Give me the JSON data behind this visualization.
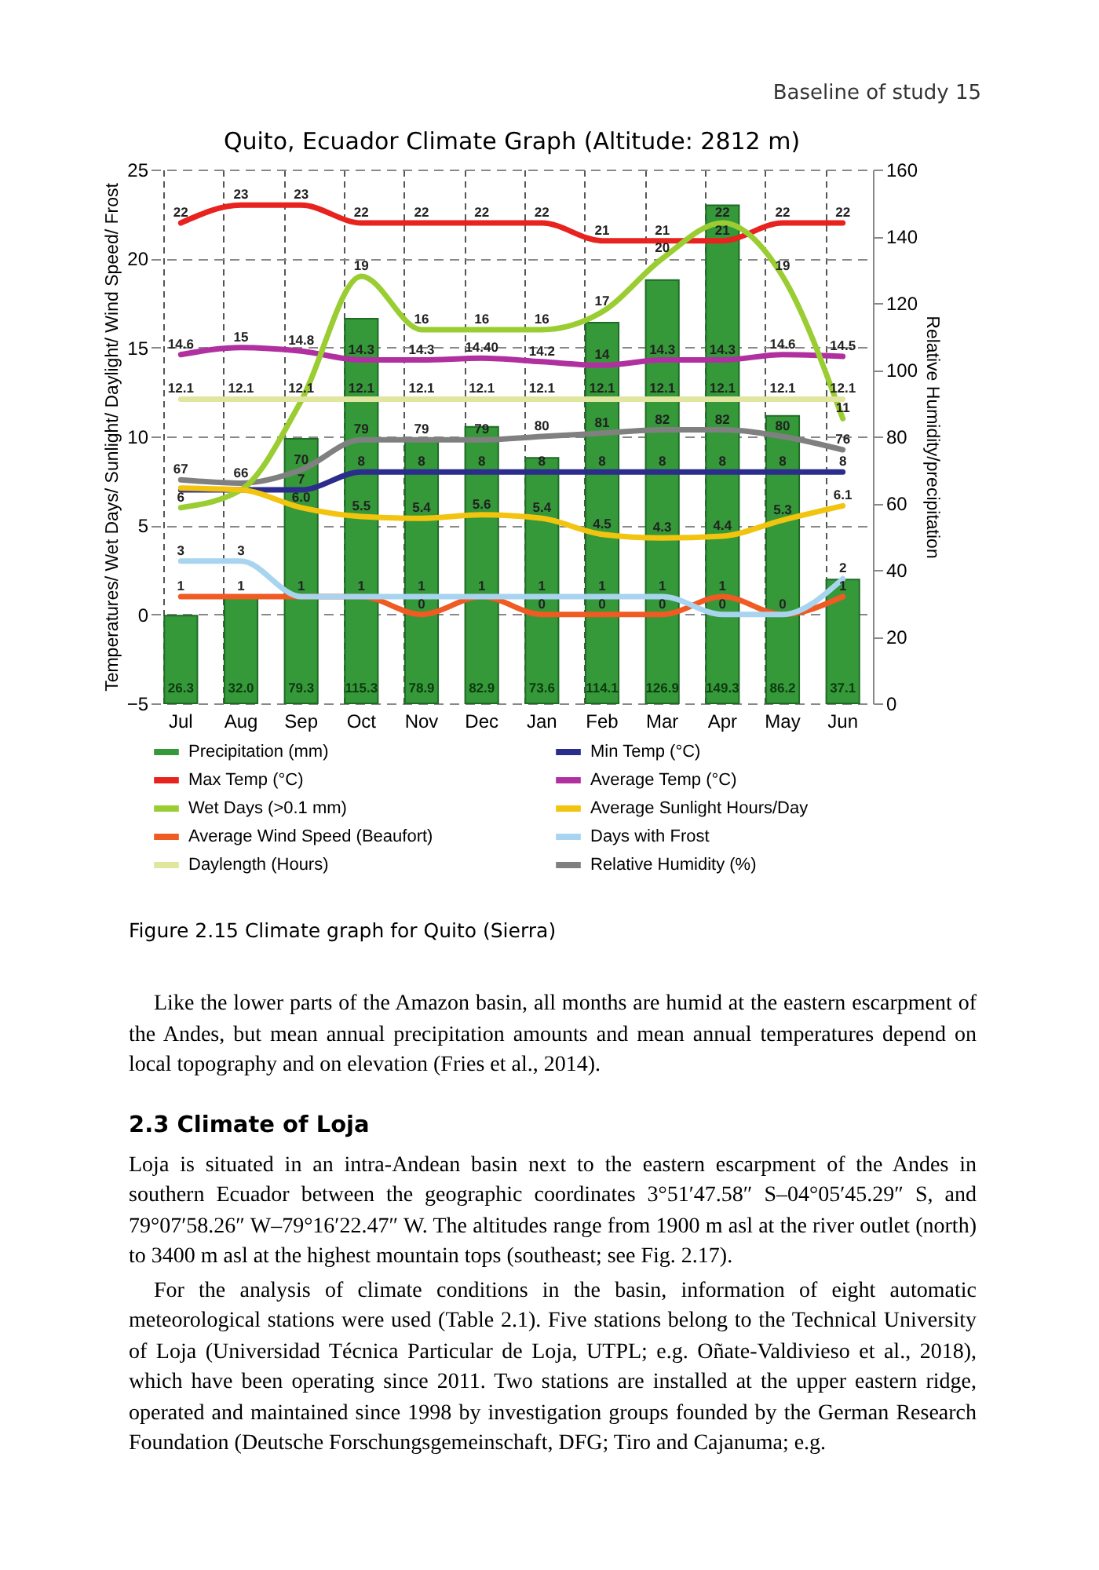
{
  "chart_data": {
    "type": "line",
    "title": "Quito, Ecuador Climate Graph (Altitude: 2812 m)",
    "ylabel": "Temperatures/ Wet Days/ Sunlight/ Daylight/ Wind Speed/ Frost",
    "y2label": "Relative Humidity/precipitation",
    "categories": [
      "Jul",
      "Aug",
      "Sep",
      "Oct",
      "Nov",
      "Dec",
      "Jan",
      "Feb",
      "Mar",
      "Apr",
      "May",
      "Jun"
    ],
    "series": [
      {
        "name": "Precipitation (mm)",
        "type": "bar",
        "axis": "y2",
        "color": "#35993a",
        "values": [
          26.3,
          32.0,
          79.3,
          115.3,
          78.9,
          82.9,
          73.6,
          114.1,
          126.9,
          149.3,
          86.2,
          37.1
        ],
        "value_labels": [
          "26.3",
          "32.0",
          "79.3",
          "115.3",
          "78.9",
          "82.9",
          "73.6",
          "114.1",
          "126.9",
          "149.3",
          "86.2",
          "37.1"
        ]
      },
      {
        "name": "Min Temp (°C)",
        "color": "#2b2c8c",
        "values": [
          7,
          7,
          7,
          8,
          8,
          8,
          8,
          8,
          8,
          8,
          8,
          8
        ],
        "value_labels": [
          null,
          null,
          "7",
          "8",
          "8",
          "8",
          "8",
          "8",
          "8",
          "8",
          "8",
          "8"
        ]
      },
      {
        "name": "Max Temp (°C)",
        "color": "#e8231f",
        "values": [
          22,
          23,
          23,
          22,
          22,
          22,
          22,
          21,
          21,
          21,
          22,
          22
        ]
      },
      {
        "name": "Average Temp (°C)",
        "color": "#b030a0",
        "values": [
          14.6,
          15,
          14.8,
          14.3,
          14.3,
          14.4,
          14.2,
          14,
          14.3,
          14.3,
          14.6,
          14.5
        ],
        "value_labels": [
          "14.6",
          "15",
          "14.8",
          "14.3",
          "14.3",
          "14.40",
          "14.2",
          "14",
          "14.3",
          "14.3",
          "14.6",
          "14.5"
        ]
      },
      {
        "name": "Wet Days (>0.1 mm)",
        "color": "#9acd32",
        "values": [
          6,
          7,
          12,
          19,
          16,
          16,
          16,
          17,
          20,
          22,
          19,
          11
        ],
        "value_labels": [
          "6",
          null,
          null,
          "19",
          "16",
          "16",
          "16",
          "17",
          "20",
          "22",
          "19",
          "11"
        ]
      },
      {
        "name": "Average Sunlight Hours/Day",
        "color": "#f2c40f",
        "values": [
          7.1,
          7,
          6.0,
          5.5,
          5.4,
          5.6,
          5.4,
          4.5,
          4.3,
          4.4,
          5.3,
          6.1
        ],
        "value_labels": [
          null,
          null,
          "6.0",
          "5.5",
          "5.4",
          "5.6",
          "5.4",
          "4.5",
          "4.3",
          "4.4",
          "5.3",
          "6.1"
        ]
      },
      {
        "name": "Average Wind Speed (Beaufort)",
        "color": "#f05a23",
        "values": [
          1,
          1,
          1,
          1,
          0,
          1,
          0,
          0,
          0,
          1,
          0,
          1
        ]
      },
      {
        "name": "Days with Frost",
        "color": "#a8d4f0",
        "values": [
          3,
          3,
          1,
          1,
          1,
          1,
          1,
          1,
          1,
          0,
          0,
          2
        ],
        "value_labels": [
          "3",
          "3",
          null,
          null,
          "1",
          null,
          "1",
          "1",
          "1",
          "0",
          null,
          "2"
        ]
      },
      {
        "name": "Daylength (Hours)",
        "color": "#e0e6a0",
        "values": [
          12.1,
          12.1,
          12.1,
          12.1,
          12.1,
          12.1,
          12.1,
          12.1,
          12.1,
          12.1,
          12.1,
          12.1
        ]
      },
      {
        "name": "Relative Humidity (%)",
        "axis": "y2",
        "color": "#808080",
        "values": [
          67,
          66,
          70,
          79,
          79,
          79,
          80,
          81,
          82,
          82,
          80,
          76
        ]
      }
    ],
    "ylim": [
      -5,
      25
    ],
    "yticks": [
      -5,
      0,
      5,
      10,
      15,
      20,
      25
    ],
    "y2lim": [
      0,
      160
    ],
    "y2ticks": [
      0,
      20,
      40,
      60,
      80,
      100,
      120,
      140,
      160
    ],
    "grid": true,
    "legend": "bottom",
    "data_labels": true,
    "annotations": [
      "Baseline of study 15",
      "Figure 2.15 Climate graph for Quito (Sierra)",
      "Like the lower parts of the Amazon basin, all months are humid at the eastern escarpment of the Andes, but mean annual precipitation amounts and mean annual temperatures depend on local topography and on elevation (Fries et al., 2014).",
      "2.3 Climate of Loja",
      "Loja is situated in an intra-Andean basin next to the eastern escarpment of the Andes in southern Ecuador between the geographic coordinates 3°51′47.58″ S–04°05′45.29″ S, and 79°07′58.26″ W–79°16′22.47″ W. The altitudes range from 1900 m asl at the river outlet (north) to 3400 m asl at the highest mountain tops (southeast; see Fig. 2.17).",
      "For the analysis of climate conditions in the basin, information of eight automatic meteorological stations were used (Table 2.1). Five stations belong to the Technical University of Loja (Universidad Técnica Particular de Loja, UTPL; e.g. Oñate-Valdivieso et al., 2018), which have been operating since 2011. Two stations are installed at the upper eastern ridge, operated and maintained since 1998 by investigation groups founded by the German Research Foundation (Deutsche Forschungsgemeinschaft, DFG; Tiro and Cajanuma; e.g."
    ]
  }
}
